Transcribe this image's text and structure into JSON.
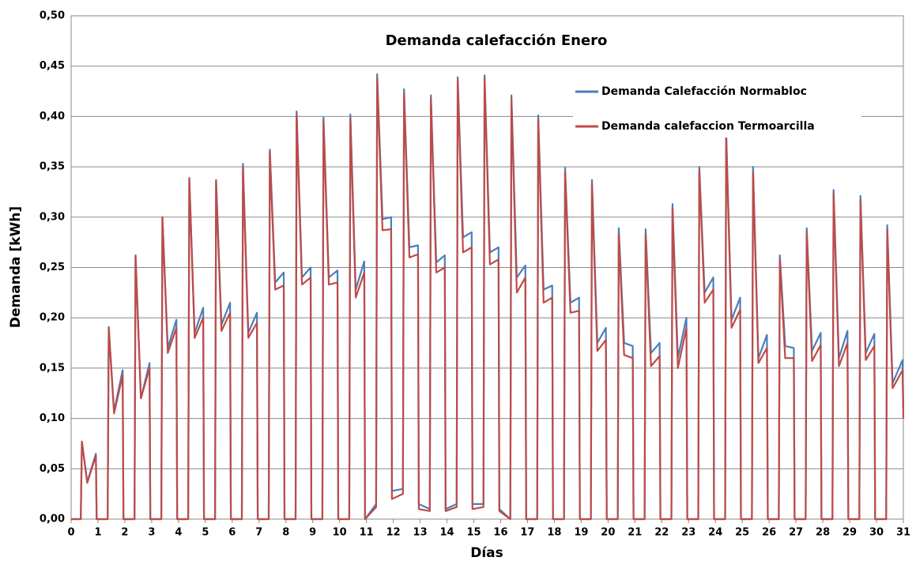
{
  "chart_data": {
    "type": "line",
    "title": "Demanda  calefacción Enero",
    "xlabel": "Días",
    "ylabel": "Demanda [kWh]",
    "legend": "upper right",
    "grid": true,
    "xlim": [
      0,
      31
    ],
    "ylim": [
      0,
      0.5
    ],
    "xticks": [
      0,
      1,
      2,
      3,
      4,
      5,
      6,
      7,
      8,
      9,
      10,
      11,
      12,
      13,
      14,
      15,
      16,
      17,
      18,
      19,
      20,
      21,
      22,
      23,
      24,
      25,
      26,
      27,
      28,
      29,
      30,
      31
    ],
    "yticks": [
      {
        "value": 0,
        "label": "0,00"
      },
      {
        "value": 0.05,
        "label": "0,05"
      },
      {
        "value": 0.1,
        "label": "0,10"
      },
      {
        "value": 0.15,
        "label": "0,15"
      },
      {
        "value": 0.2,
        "label": "0,20"
      },
      {
        "value": 0.25,
        "label": "0,25"
      },
      {
        "value": 0.3,
        "label": "0,30"
      },
      {
        "value": 0.35,
        "label": "0,35"
      },
      {
        "value": 0.4,
        "label": "0,40"
      },
      {
        "value": 0.45,
        "label": "0,45"
      },
      {
        "value": 0.5,
        "label": "0,50"
      }
    ],
    "x": [
      0,
      0.36,
      0.4,
      0.6,
      0.92,
      0.95,
      1.36,
      1.4,
      1.6,
      1.92,
      1.95,
      2.36,
      2.4,
      2.6,
      2.92,
      2.95,
      3.36,
      3.4,
      3.6,
      3.92,
      3.95,
      4.36,
      4.4,
      4.6,
      4.92,
      4.95,
      5.36,
      5.4,
      5.6,
      5.92,
      5.95,
      6.36,
      6.4,
      6.6,
      6.92,
      6.95,
      7.36,
      7.4,
      7.6,
      7.92,
      7.95,
      8.36,
      8.4,
      8.6,
      8.92,
      8.95,
      9.36,
      9.4,
      9.6,
      9.92,
      9.95,
      10.36,
      10.4,
      10.6,
      10.92,
      10.95,
      11.36,
      11.4,
      11.6,
      11.92,
      11.95,
      12.36,
      12.4,
      12.6,
      12.92,
      12.95,
      13.36,
      13.4,
      13.6,
      13.92,
      13.95,
      14.36,
      14.4,
      14.6,
      14.92,
      14.95,
      15.36,
      15.4,
      15.6,
      15.92,
      15.95,
      16.36,
      16.4,
      16.6,
      16.92,
      16.95,
      17.36,
      17.4,
      17.6,
      17.92,
      17.95,
      18.36,
      18.4,
      18.6,
      18.92,
      18.95,
      19.36,
      19.4,
      19.6,
      19.92,
      19.95,
      20.36,
      20.4,
      20.6,
      20.92,
      20.95,
      21.36,
      21.4,
      21.6,
      21.92,
      21.95,
      22.36,
      22.4,
      22.6,
      22.92,
      22.95,
      23.36,
      23.4,
      23.6,
      23.92,
      23.95,
      24.36,
      24.4,
      24.6,
      24.92,
      24.95,
      25.36,
      25.4,
      25.6,
      25.92,
      25.95,
      26.36,
      26.4,
      26.6,
      26.92,
      26.95,
      27.36,
      27.4,
      27.6,
      27.92,
      27.95,
      28.36,
      28.4,
      28.6,
      28.92,
      28.95,
      29.36,
      29.4,
      29.6,
      29.92,
      29.95,
      30.36,
      30.4,
      30.6,
      30.97,
      31
    ],
    "series": [
      {
        "name": "Demanda Calefacción Normabloc",
        "color": "#4a7ebb",
        "values": [
          0,
          0,
          0.077,
          0.037,
          0.065,
          0,
          0,
          0.191,
          0.107,
          0.148,
          0,
          0,
          0.262,
          0.12,
          0.155,
          0,
          0,
          0.3,
          0.17,
          0.198,
          0,
          0,
          0.339,
          0.185,
          0.21,
          0,
          0,
          0.337,
          0.193,
          0.215,
          0,
          0,
          0.353,
          0.185,
          0.205,
          0,
          0,
          0.367,
          0.235,
          0.245,
          0,
          0,
          0.405,
          0.24,
          0.25,
          0,
          0,
          0.399,
          0.24,
          0.247,
          0,
          0,
          0.402,
          0.228,
          0.256,
          0,
          0.015,
          0.442,
          0.298,
          0.3,
          0.028,
          0.03,
          0.427,
          0.27,
          0.272,
          0.015,
          0.01,
          0.421,
          0.255,
          0.262,
          0.01,
          0.015,
          0.439,
          0.28,
          0.285,
          0.015,
          0.015,
          0.441,
          0.265,
          0.27,
          0.01,
          0,
          0.421,
          0.24,
          0.252,
          0,
          0,
          0.401,
          0.228,
          0.232,
          0,
          0,
          0.349,
          0.215,
          0.22,
          0,
          0,
          0.337,
          0.175,
          0.19,
          0,
          0,
          0.289,
          0.175,
          0.172,
          0,
          0,
          0.288,
          0.165,
          0.175,
          0,
          0,
          0.313,
          0.16,
          0.2,
          0,
          0,
          0.35,
          0.225,
          0.24,
          0,
          0,
          0.385,
          0.198,
          0.22,
          0,
          0,
          0.35,
          0.16,
          0.183,
          0,
          0,
          0.262,
          0.172,
          0.17,
          0,
          0,
          0.289,
          0.167,
          0.185,
          0,
          0,
          0.327,
          0.16,
          0.187,
          0,
          0,
          0.321,
          0.165,
          0.184,
          0,
          0,
          0.292,
          0.135,
          0.158,
          0.11
        ]
      },
      {
        "name": "Demanda calefaccion Termoarcilla",
        "color": "#be4b48",
        "values": [
          0,
          0,
          0.077,
          0.036,
          0.063,
          0,
          0,
          0.19,
          0.105,
          0.143,
          0,
          0,
          0.262,
          0.12,
          0.15,
          0,
          0,
          0.3,
          0.165,
          0.19,
          0,
          0,
          0.338,
          0.18,
          0.2,
          0,
          0,
          0.336,
          0.187,
          0.205,
          0,
          0,
          0.35,
          0.18,
          0.195,
          0,
          0,
          0.365,
          0.228,
          0.232,
          0,
          0,
          0.402,
          0.233,
          0.24,
          0,
          0,
          0.396,
          0.233,
          0.235,
          0,
          0,
          0.398,
          0.22,
          0.245,
          0,
          0.012,
          0.438,
          0.287,
          0.288,
          0.02,
          0.025,
          0.423,
          0.26,
          0.263,
          0.01,
          0.008,
          0.418,
          0.245,
          0.25,
          0.008,
          0.012,
          0.436,
          0.265,
          0.27,
          0.01,
          0.012,
          0.438,
          0.253,
          0.258,
          0.008,
          0,
          0.418,
          0.225,
          0.24,
          0,
          0,
          0.397,
          0.215,
          0.22,
          0,
          0,
          0.345,
          0.205,
          0.207,
          0,
          0,
          0.333,
          0.167,
          0.178,
          0,
          0,
          0.283,
          0.163,
          0.16,
          0,
          0,
          0.283,
          0.152,
          0.162,
          0,
          0,
          0.308,
          0.15,
          0.19,
          0,
          0,
          0.347,
          0.215,
          0.228,
          0,
          0,
          0.382,
          0.19,
          0.208,
          0,
          0,
          0.345,
          0.155,
          0.17,
          0,
          0,
          0.258,
          0.16,
          0.16,
          0,
          0,
          0.285,
          0.157,
          0.173,
          0,
          0,
          0.323,
          0.152,
          0.175,
          0,
          0,
          0.317,
          0.158,
          0.172,
          0,
          0,
          0.288,
          0.13,
          0.148,
          0.1
        ]
      }
    ]
  }
}
